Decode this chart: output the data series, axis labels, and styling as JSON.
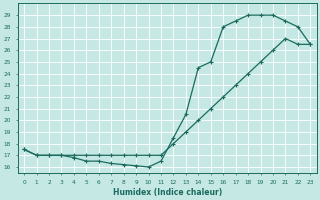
{
  "xlabel": "Humidex (Indice chaleur)",
  "ylabel": "",
  "bg_color": "#c5e8e4",
  "grid_color": "#ffffff",
  "line_color": "#1a6b5e",
  "xlim": [
    -0.5,
    23.5
  ],
  "ylim": [
    15.5,
    30.0
  ],
  "xticks": [
    0,
    1,
    2,
    3,
    4,
    5,
    6,
    7,
    8,
    9,
    10,
    11,
    12,
    13,
    14,
    15,
    16,
    17,
    18,
    19,
    20,
    21,
    22,
    23
  ],
  "yticks": [
    16,
    17,
    18,
    19,
    20,
    21,
    22,
    23,
    24,
    25,
    26,
    27,
    28,
    29
  ],
  "line1_x": [
    0,
    1,
    2,
    3,
    4,
    5,
    6,
    7,
    8,
    9,
    10,
    11,
    12,
    13,
    14,
    15,
    16,
    17,
    18,
    19,
    20,
    21,
    22,
    23
  ],
  "line1_y": [
    17.5,
    17.0,
    17.0,
    17.0,
    16.8,
    16.5,
    16.5,
    16.3,
    16.2,
    16.1,
    16.0,
    16.5,
    18.5,
    20.5,
    24.5,
    25.0,
    28.0,
    28.5,
    29.0,
    29.0,
    29.0,
    28.5,
    28.0,
    26.5
  ],
  "line2_x": [
    0,
    1,
    2,
    3,
    4,
    5,
    6,
    7,
    8,
    9,
    10,
    11,
    12,
    13,
    14,
    15,
    16,
    17,
    18,
    19,
    20,
    21,
    22,
    23
  ],
  "line2_y": [
    17.5,
    17.0,
    17.0,
    17.0,
    17.0,
    17.0,
    17.0,
    17.0,
    17.0,
    17.0,
    17.0,
    17.0,
    18.0,
    19.0,
    20.0,
    21.0,
    22.0,
    23.0,
    24.0,
    25.0,
    26.0,
    27.0,
    26.5,
    26.5
  ]
}
